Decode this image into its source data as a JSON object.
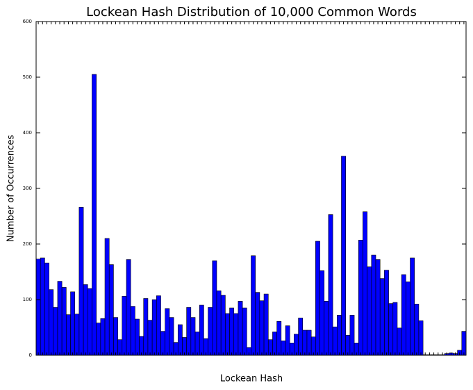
{
  "chart_data": {
    "type": "bar",
    "title": "Lockean Hash Distribution of 10,000 Common Words",
    "xlabel": "Lockean Hash",
    "ylabel": "Number of Occurrences",
    "color": "#0000ff",
    "categories": [
      null,
      null,
      null,
      null,
      null,
      null,
      null,
      null,
      null,
      null,
      null,
      null,
      null,
      null,
      null,
      null,
      null,
      null,
      null,
      null,
      null,
      null,
      null,
      null,
      null,
      null,
      null,
      null,
      null,
      null,
      null,
      null,
      null,
      null,
      null,
      null,
      null,
      null,
      null,
      null,
      null,
      null,
      null,
      null,
      null,
      null,
      null,
      null,
      null,
      null,
      null,
      null,
      null,
      null,
      null,
      null,
      null,
      null,
      null,
      null,
      null,
      null,
      null,
      null,
      null,
      null,
      null,
      null,
      null,
      null,
      null,
      null,
      null,
      null,
      null,
      null,
      null,
      null,
      null,
      null,
      null,
      null,
      null,
      null,
      null,
      null,
      null,
      null,
      null,
      null,
      null,
      null,
      null,
      null,
      null,
      null,
      null,
      null,
      null,
      null
    ],
    "values": [
      173,
      175,
      166,
      118,
      86,
      133,
      122,
      73,
      114,
      74,
      266,
      127,
      120,
      505,
      58,
      66,
      210,
      163,
      68,
      28,
      106,
      172,
      88,
      65,
      34,
      102,
      63,
      100,
      107,
      43,
      84,
      68,
      23,
      55,
      32,
      86,
      68,
      42,
      90,
      30,
      86,
      170,
      116,
      108,
      75,
      85,
      75,
      97,
      85,
      14,
      179,
      113,
      98,
      110,
      28,
      42,
      61,
      26,
      53,
      22,
      38,
      67,
      45,
      45,
      33,
      205,
      152,
      97,
      253,
      51,
      72,
      358,
      36,
      72,
      22,
      207,
      258,
      159,
      180,
      172,
      138,
      153,
      93,
      95,
      49,
      145,
      132,
      175,
      92,
      62,
      1,
      1,
      1,
      1,
      1,
      3,
      4,
      3,
      9,
      43
    ],
    "ylim": [
      0,
      600
    ],
    "yticks": [
      0,
      100,
      200,
      300,
      400,
      500,
      600
    ]
  }
}
